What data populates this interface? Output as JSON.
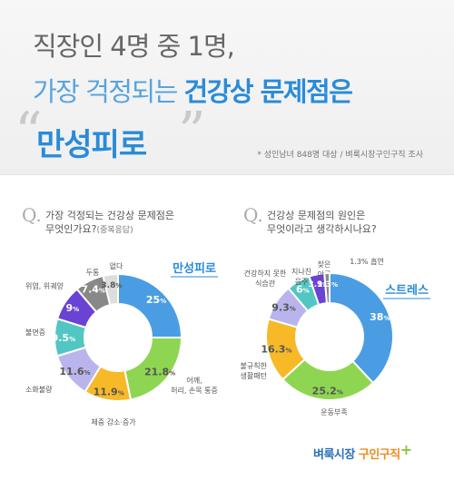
{
  "header": {
    "line1": "직장인 4명 중 1명,",
    "line2_plain": "가장 걱정되는",
    "line2_bold": "건강상 문제점은",
    "line3": "만성피로",
    "source": "* 성인남녀 848명 대상 / 벼룩시장구인구직 조사"
  },
  "questions": {
    "left": {
      "letter": "Q.",
      "line1": "가장 걱정되는 건강상 문제점은",
      "line2": "무엇인가요?",
      "note": "(중복응답)"
    },
    "right": {
      "letter": "Q.",
      "line1": "건강상 문제점의 원인은",
      "line2": "무엇이라고 생각하시나요?"
    }
  },
  "logo": {
    "part1": "벼룩시장",
    "part2": "구인구직",
    "plus": "+"
  },
  "chart_data": [
    {
      "type": "pie",
      "title": "가장 걱정되는 건강상 문제점은 무엇인가요?(중복응답)",
      "highlight": "만성피로",
      "slices": [
        {
          "label": "만성피로",
          "value": 25,
          "value_text": "25",
          "color": "#4a9de2"
        },
        {
          "label": "어깨, 허리, 손목 통증",
          "value": 21.8,
          "value_text": "21.8",
          "color": "#8ed651"
        },
        {
          "label": "체중 감소·증가",
          "value": 11.9,
          "value_text": "11.9",
          "color": "#f7b928"
        },
        {
          "label": "소화불량",
          "value": 11.6,
          "value_text": "11.6",
          "color": "#b9b5ec"
        },
        {
          "label": "불면증",
          "value": 9.5,
          "value_text": "9.5",
          "color": "#52c6c2"
        },
        {
          "label": "위염, 위궤양",
          "value": 9,
          "value_text": "9",
          "color": "#6a42d4"
        },
        {
          "label": "두통",
          "value": 7.4,
          "value_text": "7.4",
          "color": "#888888"
        },
        {
          "label": "없다",
          "value": 3.8,
          "value_text": "3.8",
          "color": "#dddddd"
        }
      ]
    },
    {
      "type": "pie",
      "title": "건강상 문제점의 원인은 무엇이라고 생각하시나요?",
      "highlight": "스트레스",
      "slices": [
        {
          "label": "스트레스",
          "value": 38,
          "value_text": "38",
          "color": "#4a9de2"
        },
        {
          "label": "운동부족",
          "value": 25.2,
          "value_text": "25.2",
          "color": "#8ed651"
        },
        {
          "label": "불규칙한 생활패턴",
          "value": 16.3,
          "value_text": "16.3",
          "color": "#f7b928"
        },
        {
          "label": "건강하지 못한 식습관",
          "value": 9.3,
          "value_text": "9.3",
          "color": "#b9b5ec"
        },
        {
          "label": "지나친 음주",
          "value": 6,
          "value_text": "6",
          "color": "#52c6c2"
        },
        {
          "label": "잦은 야근",
          "value": 3.9,
          "value_text": "3.9",
          "color": "#6a42d4"
        },
        {
          "label": "흡연",
          "value": 1.3,
          "value_text": "1.3",
          "color": "#888888"
        }
      ]
    }
  ],
  "percent_sign": "%"
}
